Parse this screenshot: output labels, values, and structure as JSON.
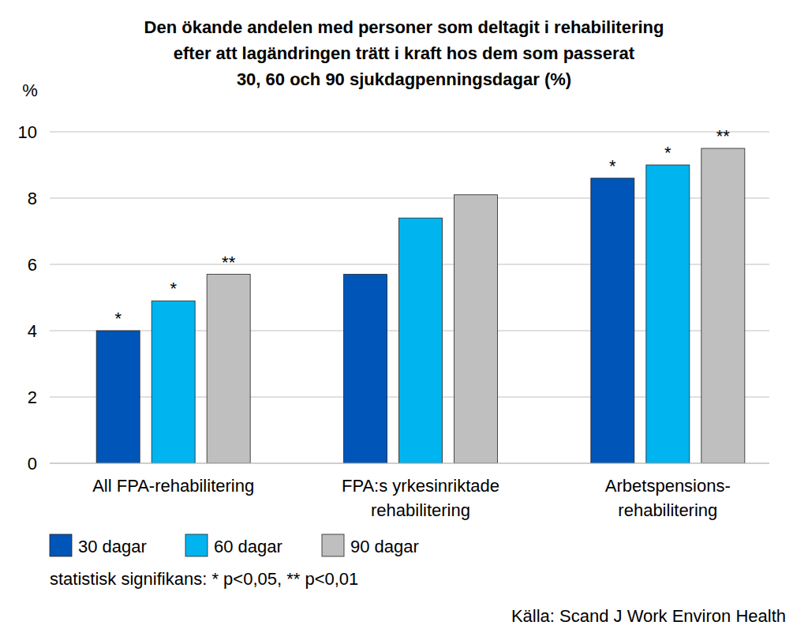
{
  "chart_data": {
    "type": "bar",
    "title": "Den ökande andelen med personer som deltagit i rehabilitering\nefter att lagändringen trätt i kraft hos dem som passerat\n30, 60 och 90 sjukdagpenningsdagar (%)",
    "y_label": "%",
    "categories": [
      "All FPA-rehabilitering",
      "FPA:s yrkesinriktade\nrehabilitering",
      "Arbetspensions-\nrehabilitering"
    ],
    "series": [
      {
        "name": "30 dagar",
        "color": "#0055b8",
        "values": [
          4.0,
          5.7,
          8.6
        ],
        "significance": [
          "*",
          null,
          "*"
        ]
      },
      {
        "name": "60 dagar",
        "color": "#00b4f0",
        "values": [
          4.9,
          7.4,
          9.0
        ],
        "significance": [
          "*",
          null,
          "*"
        ]
      },
      {
        "name": "90 dagar",
        "color": "#bfbfbf",
        "values": [
          5.7,
          8.1,
          9.5
        ],
        "significance": [
          "**",
          null,
          "**"
        ]
      }
    ],
    "ylim": [
      0,
      10
    ],
    "yticks": [
      0,
      2,
      4,
      6,
      8,
      10
    ],
    "grid": true,
    "legend": "bottom-left",
    "significance_note": "statistisk signifikans: * p<0,05, ** p<0,01",
    "source": "Källa: Scand J Work Environ Health"
  }
}
